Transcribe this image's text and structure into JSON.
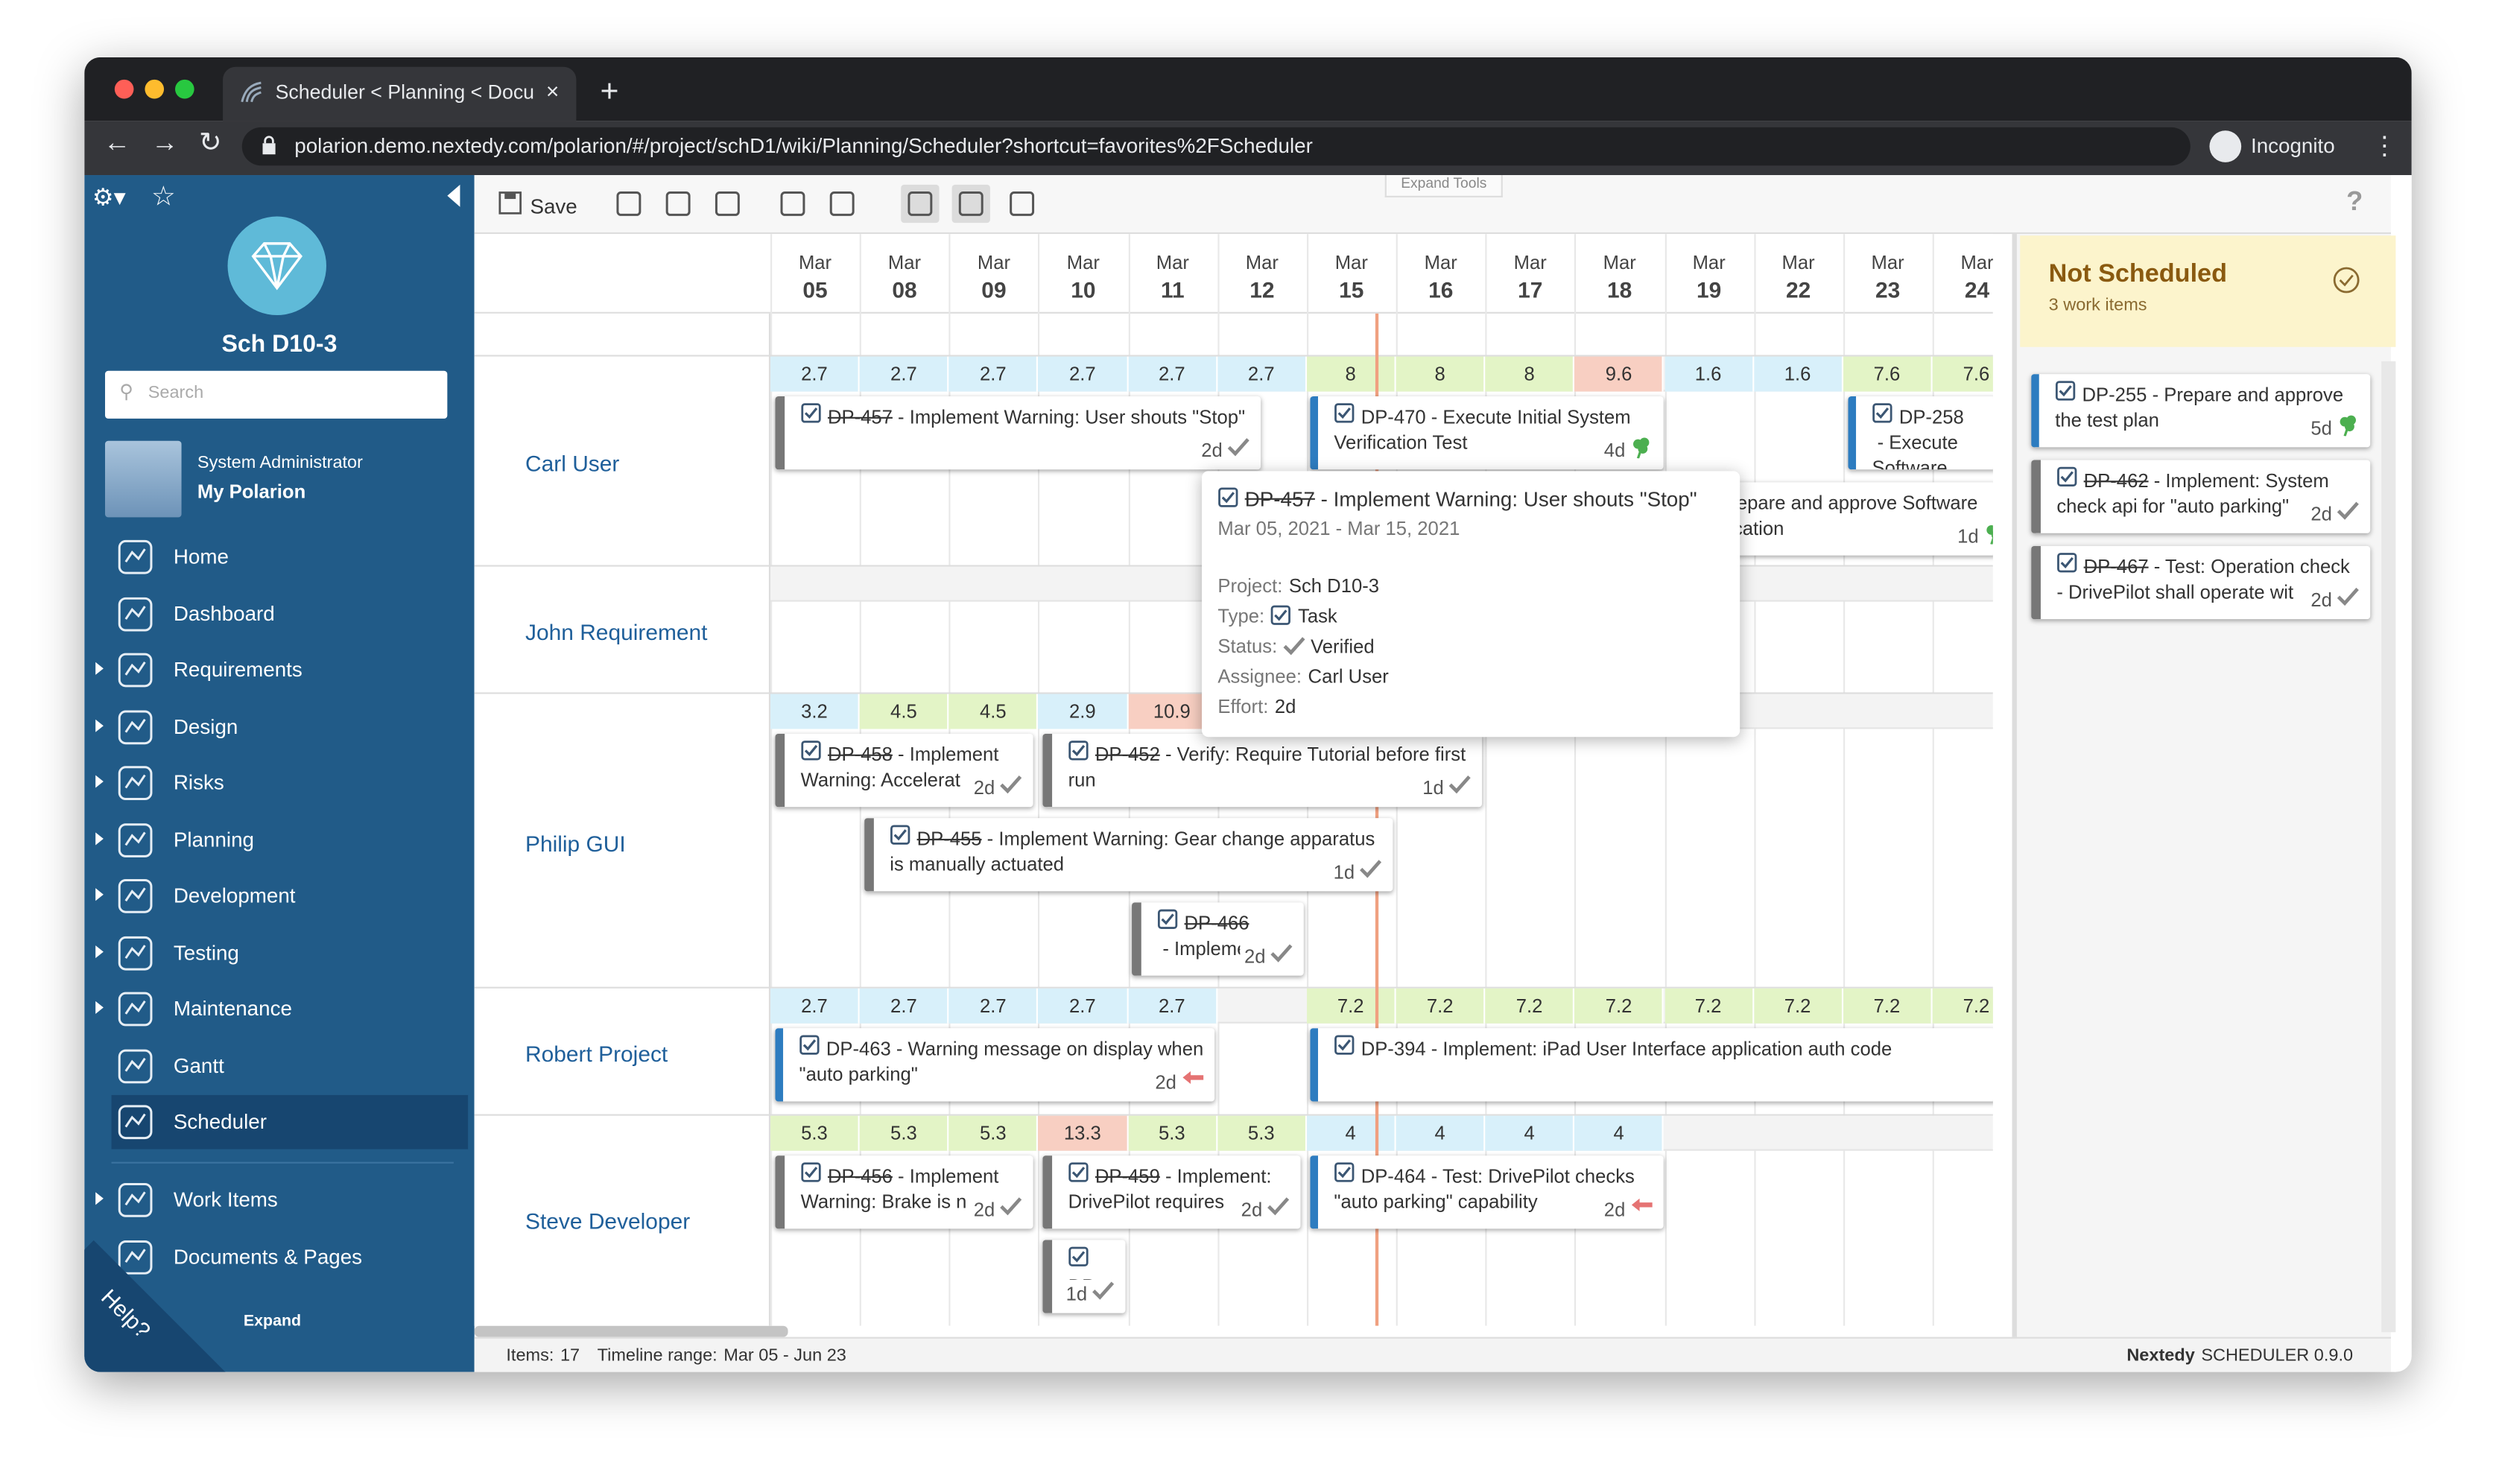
{
  "browser": {
    "tab_title": "Scheduler < Planning < Docum",
    "url": "polarion.demo.nextedy.com/polarion/#/project/schD1/wiki/Planning/Scheduler?shortcut=favorites%2FScheduler",
    "profile": "Incognito"
  },
  "sidebar": {
    "project": "Sch D10-3",
    "search_placeholder": "Search",
    "user_role": "System Administrator",
    "user_link": "My Polarion",
    "nav": [
      {
        "label": "Home",
        "expandable": false
      },
      {
        "label": "Dashboard",
        "expandable": false
      },
      {
        "label": "Requirements",
        "expandable": true
      },
      {
        "label": "Design",
        "expandable": true
      },
      {
        "label": "Risks",
        "expandable": true
      },
      {
        "label": "Planning",
        "expandable": true
      },
      {
        "label": "Development",
        "expandable": true
      },
      {
        "label": "Testing",
        "expandable": true
      },
      {
        "label": "Maintenance",
        "expandable": true
      },
      {
        "label": "Gantt",
        "expandable": false
      },
      {
        "label": "Scheduler",
        "expandable": false,
        "active": true
      }
    ],
    "nav2": [
      {
        "label": "Work Items",
        "expandable": true
      },
      {
        "label": "Documents & Pages",
        "expandable": false
      }
    ],
    "expand": "Expand",
    "help": "Help?"
  },
  "toolbar": {
    "save": "Save",
    "expand_tools": "Expand Tools",
    "help": "?"
  },
  "timeline": {
    "columns": [
      {
        "month": "Mar",
        "day": "05"
      },
      {
        "month": "Mar",
        "day": "08"
      },
      {
        "month": "Mar",
        "day": "09"
      },
      {
        "month": "Mar",
        "day": "10"
      },
      {
        "month": "Mar",
        "day": "11"
      },
      {
        "month": "Mar",
        "day": "12"
      },
      {
        "month": "Mar",
        "day": "15"
      },
      {
        "month": "Mar",
        "day": "16"
      },
      {
        "month": "Mar",
        "day": "17"
      },
      {
        "month": "Mar",
        "day": "18"
      },
      {
        "month": "Mar",
        "day": "19"
      },
      {
        "month": "Mar",
        "day": "22"
      },
      {
        "month": "Mar",
        "day": "23"
      },
      {
        "month": "Mar",
        "day": "24"
      }
    ]
  },
  "rows": [
    {
      "name": "Carl User",
      "load": [
        2.7,
        2.7,
        2.7,
        2.7,
        2.7,
        2.7,
        8,
        8,
        8,
        9.6,
        1.6,
        1.6,
        7.6,
        7.6
      ],
      "load_colors": [
        "#d8f0fa",
        "#d8f0fa",
        "#d8f0fa",
        "#d8f0fa",
        "#d8f0fa",
        "#d8f0fa",
        "#e3f4c6",
        "#e3f4c6",
        "#e3f4c6",
        "#f8cfc2",
        "#d8f0fa",
        "#d8f0fa",
        "#e3f4c6",
        "#e3f4c6"
      ]
    },
    {
      "name": "John Requirement",
      "load": [],
      "load_colors": []
    },
    {
      "name": "Philip GUI",
      "load": [
        3.2,
        4.5,
        4.5,
        2.9,
        10.9
      ],
      "load_colors": [
        "#d8f0fa",
        "#e3f4c6",
        "#e3f4c6",
        "#d8f0fa",
        "#f8cfc2"
      ]
    },
    {
      "name": "Robert Project",
      "load": [
        2.7,
        2.7,
        2.7,
        2.7,
        2.7,
        null,
        7.2,
        7.2,
        7.2,
        7.2,
        7.2,
        7.2,
        7.2,
        7.2
      ],
      "load_colors": [
        "#d8f0fa",
        "#d8f0fa",
        "#d8f0fa",
        "#d8f0fa",
        "#d8f0fa",
        null,
        "#e3f4c6",
        "#e3f4c6",
        "#e3f4c6",
        "#e3f4c6",
        "#e3f4c6",
        "#e3f4c6",
        "#e3f4c6",
        "#e3f4c6"
      ]
    },
    {
      "name": "Steve Developer",
      "load": [
        5.3,
        5.3,
        5.3,
        13.3,
        5.3,
        5.3,
        4,
        4,
        4,
        4
      ],
      "load_colors": [
        "#e3f4c6",
        "#e3f4c6",
        "#e3f4c6",
        "#f8cfc2",
        "#e3f4c6",
        "#e3f4c6",
        "#d8f0fa",
        "#d8f0fa",
        "#d8f0fa",
        "#d8f0fa"
      ]
    }
  ],
  "card_separator": " - ",
  "cards": [
    {
      "id": "DP-457",
      "title": "Implement Warning: User shouts \"Stop\"",
      "effort": "2d",
      "done": true,
      "icon": "check"
    },
    {
      "id": "DP-470",
      "title": "Execute Initial System Verification Test",
      "effort": "4d",
      "done": false,
      "icon": "clover"
    },
    {
      "id": "DP-258",
      "title": "Execute Software Verification",
      "done": false
    },
    {
      "title": "Prepare and approve Software Verification",
      "effort": "1d",
      "done": false,
      "icon": "clover"
    },
    {
      "id": "DP-458",
      "title": "Implement Warning: Accelerat",
      "effort": "2d",
      "done": true,
      "icon": "check"
    },
    {
      "id": "DP-452",
      "title": "Verify: Require Tutorial before first run",
      "effort": "1d",
      "done": true,
      "icon": "check"
    },
    {
      "id": "DP-455",
      "title": "Implement Warning: Gear change apparatus is manually actuated",
      "effort": "1d",
      "done": true,
      "icon": "check"
    },
    {
      "id": "DP-466",
      "title": "Impleme",
      "effort": "2d",
      "done": true,
      "icon": "check"
    },
    {
      "id": "DP-463",
      "title": "Warning message on display when \"auto parking\"",
      "effort": "2d",
      "done": false,
      "icon": "arrow"
    },
    {
      "id": "DP-394",
      "title": "Implement: iPad User Interface application auth code",
      "done": false
    },
    {
      "id": "DP-456",
      "title": "Implement Warning: Brake is n",
      "effort": "2d",
      "done": true,
      "icon": "check"
    },
    {
      "id": "DP-459",
      "title": "Implement: DrivePilot requires",
      "effort": "2d",
      "done": true,
      "icon": "check"
    },
    {
      "id": "DP-464",
      "title": "Test: DrivePilot checks \"auto parking\" capability",
      "effort": "2d",
      "done": false,
      "icon": "arrow"
    },
    {
      "id": "DP",
      "effort": "1d",
      "done": true,
      "icon": "check"
    }
  ],
  "popup": {
    "id": "DP-457",
    "title": "Implement Warning: User shouts \"Stop\"",
    "dates": "Mar 05, 2021 - Mar 15, 2021",
    "fields": [
      {
        "label": "Project:",
        "value": "Sch D10-3"
      },
      {
        "label": "Type:",
        "value": "Task",
        "icon": "box"
      },
      {
        "label": "Status:",
        "value": "Verified",
        "icon": "check"
      },
      {
        "label": "Assignee:",
        "value": "Carl User"
      },
      {
        "label": "Effort:",
        "value": "2d"
      }
    ]
  },
  "unscheduled": {
    "title": "Not Scheduled",
    "count": "3 work items",
    "cards": [
      {
        "id": "DP-255",
        "title": "Prepare and approve the test plan",
        "effort": "5d",
        "done": false,
        "icon": "clover"
      },
      {
        "id": "DP-462",
        "title": "Implement: System check api for \"auto parking\"",
        "effort": "2d",
        "done": true,
        "icon": "check"
      },
      {
        "id": "DP-467",
        "title": "Test: Operation check - DrivePilot shall operate wit",
        "effort": "2d",
        "done": true,
        "icon": "check"
      }
    ]
  },
  "footer": {
    "items_label": "Items:",
    "items": 17,
    "range_label": "Timeline range:",
    "range": "Mar 05 - Jun 23",
    "brand": "Nextedy",
    "product": "SCHEDULER 0.9.0"
  }
}
